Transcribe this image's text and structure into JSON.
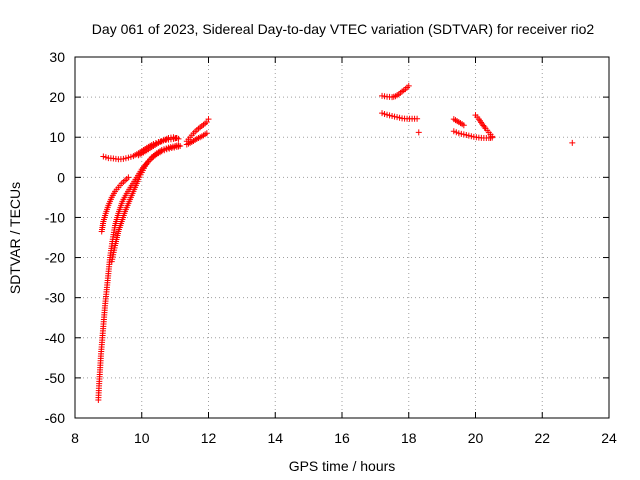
{
  "chart_data": {
    "type": "scatter",
    "title": "Day 061 of 2023, Sidereal Day-to-day VTEC variation (SDTVAR) for receiver rio2",
    "xlabel": "GPS time / hours",
    "ylabel": "SDTVAR / TECUs",
    "xlim": [
      8,
      24
    ],
    "ylim": [
      -60,
      30
    ],
    "xticks": [
      "8",
      "10",
      "12",
      "14",
      "16",
      "18",
      "20",
      "22",
      "24"
    ],
    "yticks": [
      "30",
      "20",
      "10",
      "0",
      "-10",
      "-20",
      "-30",
      "-40",
      "-50",
      "-60"
    ],
    "grid": true,
    "marker": "+",
    "color": "#ff0000",
    "series": [
      {
        "name": "rio2",
        "segments": [
          [
            [
              8.7,
              -55.5
            ],
            [
              8.72,
              -52
            ],
            [
              8.75,
              -48
            ],
            [
              8.78,
              -44
            ],
            [
              8.82,
              -40
            ],
            [
              8.86,
              -36
            ],
            [
              8.9,
              -32
            ],
            [
              8.95,
              -28
            ],
            [
              9.0,
              -24
            ],
            [
              9.05,
              -20
            ],
            [
              9.12,
              -16
            ],
            [
              9.2,
              -12
            ],
            [
              9.3,
              -9
            ],
            [
              9.42,
              -6
            ],
            [
              9.55,
              -4
            ],
            [
              9.7,
              -2
            ],
            [
              9.85,
              0
            ],
            [
              10.0,
              2
            ],
            [
              10.15,
              3.5
            ],
            [
              10.3,
              4.8
            ],
            [
              10.45,
              5.8
            ],
            [
              10.6,
              6.5
            ],
            [
              10.75,
              7
            ],
            [
              10.9,
              7.3
            ],
            [
              11.05,
              7.6
            ],
            [
              11.15,
              7.8
            ]
          ],
          [
            [
              8.8,
              -13.5
            ],
            [
              8.85,
              -11
            ],
            [
              8.92,
              -9
            ],
            [
              9.0,
              -7
            ],
            [
              9.1,
              -5
            ],
            [
              9.2,
              -3.5
            ],
            [
              9.3,
              -2.5
            ],
            [
              9.4,
              -1.5
            ],
            [
              9.5,
              -0.8
            ],
            [
              9.6,
              0
            ]
          ],
          [
            [
              9.1,
              -21
            ],
            [
              9.2,
              -17
            ],
            [
              9.3,
              -13.5
            ],
            [
              9.4,
              -11
            ],
            [
              9.5,
              -8.5
            ],
            [
              9.6,
              -6.5
            ],
            [
              9.7,
              -4.5
            ],
            [
              9.8,
              -2.5
            ],
            [
              9.9,
              -0.5
            ],
            [
              10.0,
              1.2
            ],
            [
              10.1,
              2.8
            ],
            [
              10.2,
              4
            ],
            [
              10.3,
              5
            ],
            [
              10.45,
              6
            ],
            [
              10.6,
              6.8
            ],
            [
              10.8,
              7.4
            ],
            [
              11.0,
              7.8
            ],
            [
              11.1,
              8
            ]
          ],
          [
            [
              8.85,
              5.2
            ],
            [
              9.0,
              4.8
            ],
            [
              9.15,
              4.7
            ],
            [
              9.3,
              4.5
            ],
            [
              9.45,
              4.6
            ],
            [
              9.6,
              4.9
            ],
            [
              9.75,
              5.3
            ],
            [
              9.9,
              6
            ],
            [
              10.05,
              6.8
            ],
            [
              10.2,
              7.6
            ],
            [
              10.35,
              8.3
            ],
            [
              10.5,
              8.8
            ],
            [
              10.65,
              9.2
            ],
            [
              10.8,
              9.4
            ],
            [
              10.95,
              9.6
            ],
            [
              11.05,
              9.8
            ]
          ],
          [
            [
              9.9,
              5.5
            ],
            [
              10.05,
              6.2
            ],
            [
              10.2,
              7
            ],
            [
              10.35,
              7.8
            ],
            [
              10.5,
              8.6
            ],
            [
              10.65,
              9.2
            ],
            [
              10.8,
              9.8
            ],
            [
              10.95,
              10
            ],
            [
              11.1,
              9.6
            ]
          ],
          [
            [
              11.35,
              9
            ],
            [
              11.45,
              10
            ],
            [
              11.55,
              11
            ],
            [
              11.65,
              11.8
            ],
            [
              11.75,
              12.5
            ],
            [
              11.85,
              13.1
            ],
            [
              11.95,
              13.8
            ],
            [
              12.0,
              14.5
            ]
          ],
          [
            [
              11.35,
              8.2
            ],
            [
              11.5,
              8.8
            ],
            [
              11.65,
              9.6
            ],
            [
              11.8,
              10.2
            ],
            [
              11.95,
              11
            ]
          ],
          [
            [
              17.2,
              20.3
            ],
            [
              17.35,
              20.1
            ],
            [
              17.5,
              20
            ],
            [
              17.6,
              20.2
            ],
            [
              17.7,
              20.7
            ],
            [
              17.8,
              21.4
            ],
            [
              17.9,
              22
            ],
            [
              18.0,
              22.8
            ]
          ],
          [
            [
              17.2,
              16
            ],
            [
              17.35,
              15.6
            ],
            [
              17.5,
              15.3
            ],
            [
              17.65,
              15
            ],
            [
              17.8,
              14.7
            ],
            [
              17.95,
              14.6
            ],
            [
              18.1,
              14.6
            ],
            [
              18.25,
              14.6
            ]
          ],
          [
            [
              18.3,
              11.2
            ]
          ],
          [
            [
              19.35,
              14.5
            ],
            [
              19.45,
              14
            ],
            [
              19.55,
              13.5
            ],
            [
              19.65,
              13
            ]
          ],
          [
            [
              20.0,
              15.5
            ],
            [
              20.1,
              14.5
            ],
            [
              20.2,
              13.3
            ],
            [
              20.3,
              12.2
            ],
            [
              20.4,
              11.2
            ],
            [
              20.5,
              10.2
            ]
          ],
          [
            [
              19.35,
              11.5
            ],
            [
              19.5,
              11
            ],
            [
              19.65,
              10.7
            ],
            [
              19.8,
              10.4
            ],
            [
              19.95,
              10.1
            ],
            [
              20.1,
              9.9
            ],
            [
              20.25,
              9.8
            ],
            [
              20.4,
              9.8
            ],
            [
              20.5,
              9.9
            ]
          ],
          [
            [
              22.9,
              8.6
            ]
          ]
        ]
      }
    ]
  }
}
